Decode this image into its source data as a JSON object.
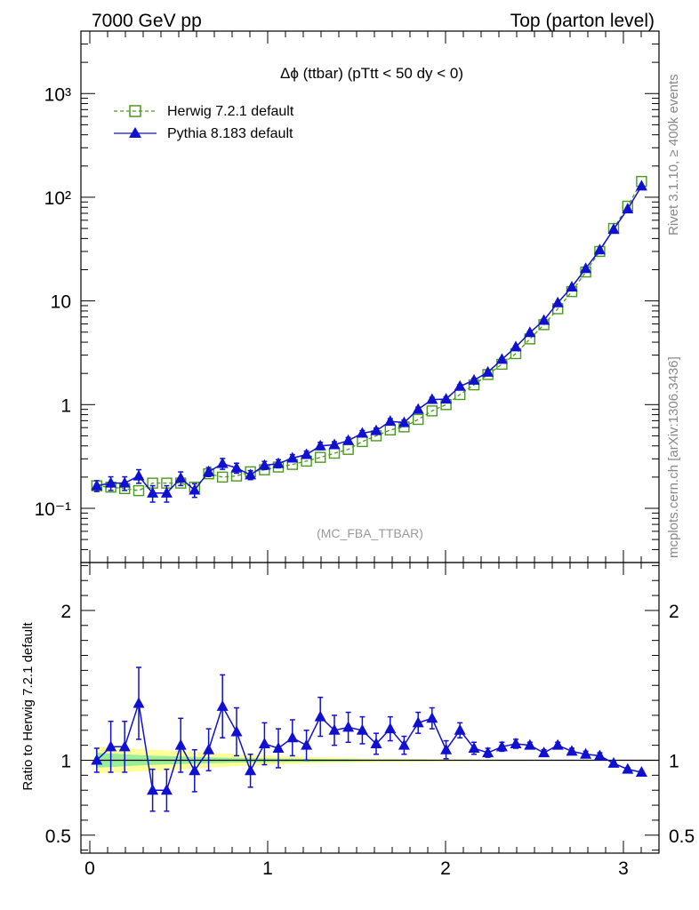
{
  "header": {
    "left": "7000 GeV pp",
    "right": "Top (parton level)"
  },
  "side_labels": {
    "rivet": "Rivet 3.1.10, ≥ 400k events",
    "mcplots": "mcplots.cern.ch [arXiv:1306.3436]"
  },
  "chart_data": [
    {
      "type": "line",
      "title": "Δϕ (ttbar) (pTtt < 50 dy < 0)",
      "watermark": "(MC_FBA_TTBAR)",
      "yscale": "log",
      "xlim": [
        -0.05,
        3.2
      ],
      "ylim": [
        0.03,
        4000
      ],
      "ytick_labels": [
        "10⁻¹",
        "1",
        "10",
        "10²",
        "10³"
      ],
      "yticks": [
        0.1,
        1,
        10,
        100,
        1000
      ],
      "legend_position": "top-left",
      "x": [
        0.039,
        0.118,
        0.196,
        0.275,
        0.353,
        0.432,
        0.511,
        0.589,
        0.668,
        0.746,
        0.825,
        0.903,
        0.982,
        1.06,
        1.139,
        1.218,
        1.296,
        1.375,
        1.453,
        1.532,
        1.61,
        1.689,
        1.767,
        1.846,
        1.924,
        2.003,
        2.081,
        2.16,
        2.238,
        2.317,
        2.395,
        2.474,
        2.553,
        2.631,
        2.71,
        2.788,
        2.867,
        2.945,
        3.024,
        3.102
      ],
      "series": [
        {
          "name": "Herwig 7.2.1 default",
          "color": "#4a9a1a",
          "marker": "open-square",
          "linestyle": "dashed",
          "values": [
            0.165,
            0.16,
            0.155,
            0.148,
            0.175,
            0.175,
            0.175,
            0.16,
            0.215,
            0.2,
            0.205,
            0.225,
            0.235,
            0.25,
            0.265,
            0.285,
            0.31,
            0.34,
            0.37,
            0.44,
            0.5,
            0.57,
            0.61,
            0.72,
            0.87,
            1.0,
            1.25,
            1.55,
            1.95,
            2.45,
            3.1,
            4.3,
            5.9,
            8.4,
            12.3,
            19.0,
            30.0,
            50.0,
            82.0,
            142.0
          ]
        },
        {
          "name": "Pythia 8.183 default",
          "color": "#1010d0",
          "marker": "filled-triangle",
          "linestyle": "solid",
          "values": [
            0.165,
            0.175,
            0.175,
            0.205,
            0.14,
            0.14,
            0.195,
            0.15,
            0.225,
            0.27,
            0.245,
            0.21,
            0.26,
            0.27,
            0.305,
            0.33,
            0.4,
            0.41,
            0.45,
            0.53,
            0.56,
            0.69,
            0.67,
            0.9,
            1.12,
            1.13,
            1.5,
            1.72,
            2.05,
            2.73,
            3.6,
            4.95,
            6.5,
            9.6,
            13.6,
            20.5,
            31.0,
            49.0,
            77.0,
            128.0
          ],
          "err_rel": [
            0.12,
            0.15,
            0.15,
            0.15,
            0.18,
            0.18,
            0.15,
            0.15,
            0.1,
            0.12,
            0.11,
            0.1,
            0.09,
            0.09,
            0.08,
            0.08,
            0.08,
            0.07,
            0.07,
            0.06,
            0.06,
            0.06,
            0.06,
            0.05,
            0.05,
            0.05,
            0.04,
            0.04,
            0.04,
            0.03,
            0.03,
            0.03,
            0.03,
            0.02,
            0.02,
            0.02,
            0.02,
            0.02,
            0.02,
            0.02
          ]
        }
      ]
    },
    {
      "type": "line",
      "ylabel": "Ratio to Herwig 7.2.1 default",
      "ylim": [
        0.38,
        2.32
      ],
      "yticks": [
        0.5,
        1,
        2
      ],
      "ytick_labels": [
        "0.5",
        "1",
        "2"
      ],
      "xticks": [
        0,
        1,
        2,
        3
      ],
      "xtick_labels": [
        "0",
        "1",
        "2",
        "3"
      ],
      "reference_line": 1,
      "band_green_halfwidth": [
        0.05,
        0.045,
        0.04,
        0.035,
        0.03,
        0.028,
        0.025,
        0.022,
        0.02,
        0.018,
        0.016,
        0.014,
        0.013,
        0.012,
        0.011,
        0.01,
        0.009,
        0.008,
        0.007,
        0.006,
        0.005,
        0.005,
        0.004,
        0.004,
        0.003,
        0.003,
        0.003,
        0.002,
        0.002,
        0.002,
        0.002,
        0.002,
        0.001,
        0.001,
        0.001,
        0.001,
        0.001,
        0.001,
        0.001,
        0.001
      ],
      "band_yellow_halfwidth": [
        0.09,
        0.085,
        0.08,
        0.075,
        0.07,
        0.065,
        0.06,
        0.055,
        0.05,
        0.045,
        0.04,
        0.036,
        0.032,
        0.028,
        0.025,
        0.022,
        0.02,
        0.018,
        0.016,
        0.014,
        0.012,
        0.011,
        0.01,
        0.009,
        0.008,
        0.007,
        0.006,
        0.005,
        0.005,
        0.004,
        0.004,
        0.003,
        0.003,
        0.003,
        0.002,
        0.002,
        0.002,
        0.002,
        0.002,
        0.002
      ],
      "series": [
        {
          "name": "Pythia 8.183 default",
          "color": "#1010d0",
          "values": [
            1.0,
            1.09,
            1.09,
            1.38,
            0.8,
            0.8,
            1.1,
            0.93,
            1.07,
            1.36,
            1.19,
            0.93,
            1.11,
            1.08,
            1.15,
            1.1,
            1.29,
            1.2,
            1.22,
            1.2,
            1.11,
            1.21,
            1.1,
            1.25,
            1.28,
            1.07,
            1.2,
            1.08,
            1.05,
            1.09,
            1.11,
            1.1,
            1.05,
            1.1,
            1.06,
            1.04,
            1.03,
            0.98,
            0.94,
            0.92
          ],
          "err": [
            0.08,
            0.17,
            0.17,
            0.24,
            0.14,
            0.14,
            0.18,
            0.14,
            0.14,
            0.21,
            0.16,
            0.11,
            0.14,
            0.13,
            0.12,
            0.1,
            0.13,
            0.1,
            0.1,
            0.09,
            0.07,
            0.08,
            0.06,
            0.07,
            0.07,
            0.06,
            0.05,
            0.04,
            0.03,
            0.03,
            0.03,
            0.02,
            0.02,
            0.02,
            0.02,
            0.02,
            0.02,
            0.01,
            0.01,
            0.01
          ]
        }
      ]
    }
  ]
}
